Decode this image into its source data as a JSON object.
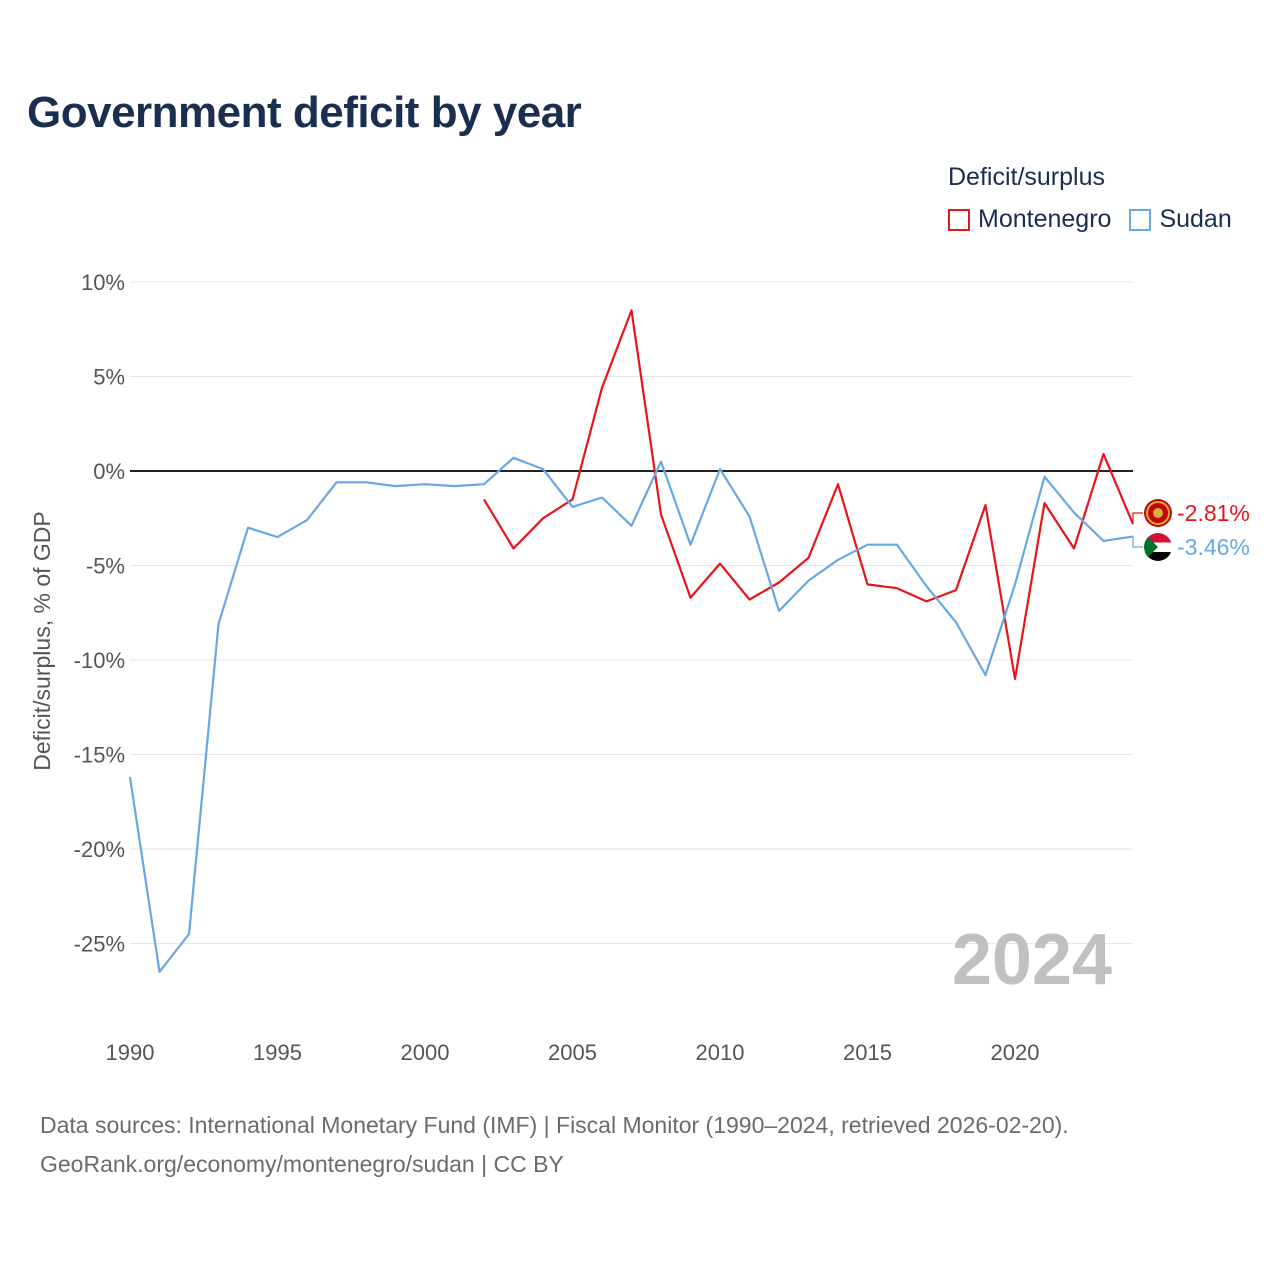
{
  "title": "Government deficit by year",
  "legend": {
    "title": "Deficit/surplus",
    "items": [
      {
        "label": "Montenegro",
        "color": "#e8141b"
      },
      {
        "label": "Sudan",
        "color": "#66a8e6"
      }
    ]
  },
  "footer": {
    "line1": "Data sources: International Monetary Fund (IMF) | Fiscal Monitor (1990–2024, retrieved 2026-02-20).",
    "line2": "GeoRank.org/economy/montenegro/sudan | CC BY"
  },
  "chart_data": {
    "type": "line",
    "title": "Government deficit by year",
    "xlabel": "",
    "ylabel": "Deficit/surplus, % of GDP",
    "xlim": [
      1990,
      2024
    ],
    "ylim": [
      -28,
      10
    ],
    "x_ticks": [
      1990,
      1995,
      2000,
      2005,
      2010,
      2015,
      2020
    ],
    "y_ticks": [
      10,
      5,
      0,
      -5,
      -10,
      -15,
      -20,
      -25
    ],
    "y_tick_labels": [
      "10%",
      "5%",
      "0%",
      "-5%",
      "-10%",
      "-15%",
      "-20%",
      "-25%"
    ],
    "x_tick_labels": [
      "1990",
      "1995",
      "2000",
      "2005",
      "2010",
      "2015",
      "2020"
    ],
    "watermark_year": "2024",
    "grid": true,
    "series": [
      {
        "name": "Montenegro",
        "color": "#e8141b",
        "end_label": "-2.81%",
        "x": [
          2002,
          2003,
          2004,
          2005,
          2006,
          2007,
          2008,
          2009,
          2010,
          2011,
          2012,
          2013,
          2014,
          2015,
          2016,
          2017,
          2018,
          2019,
          2020,
          2021,
          2022,
          2023,
          2024
        ],
        "values": [
          -1.5,
          -4.1,
          -2.5,
          -1.5,
          4.4,
          8.5,
          -2.3,
          -6.7,
          -4.9,
          -6.8,
          -5.9,
          -4.6,
          -0.7,
          -6.0,
          -6.2,
          -6.9,
          -6.3,
          -1.8,
          -11.0,
          -1.7,
          -4.1,
          0.9,
          -2.81
        ]
      },
      {
        "name": "Sudan",
        "color": "#66a8e6",
        "end_label": "-3.46%",
        "x": [
          1990,
          1991,
          1992,
          1993,
          1994,
          1995,
          1996,
          1997,
          1998,
          1999,
          2000,
          2001,
          2002,
          2003,
          2004,
          2005,
          2006,
          2007,
          2008,
          2009,
          2010,
          2011,
          2012,
          2013,
          2014,
          2015,
          2016,
          2017,
          2018,
          2019,
          2020,
          2021,
          2022,
          2023,
          2024
        ],
        "values": [
          -16.2,
          -26.5,
          -24.5,
          -8.1,
          -3.0,
          -3.5,
          -2.6,
          -0.6,
          -0.6,
          -0.8,
          -0.7,
          -0.8,
          -0.7,
          0.7,
          0.1,
          -1.9,
          -1.4,
          -2.9,
          0.5,
          -3.9,
          0.1,
          -2.4,
          -7.4,
          -5.8,
          -4.7,
          -3.9,
          -3.9,
          -6.1,
          -8.0,
          -10.8,
          -6.0,
          -0.3,
          -2.2,
          -3.7,
          -3.46
        ]
      }
    ]
  }
}
